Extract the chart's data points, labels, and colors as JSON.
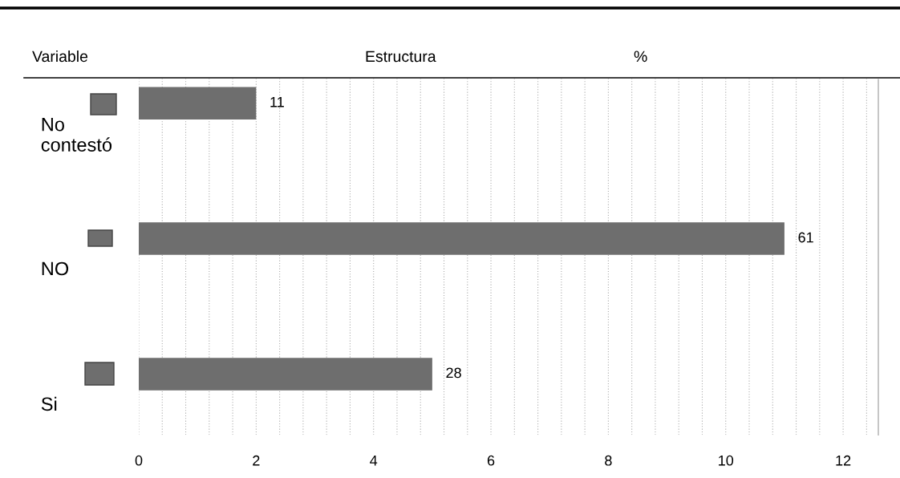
{
  "chart_data": {
    "type": "bar",
    "orientation": "horizontal",
    "categories": [
      "No\ncontestó",
      "NO",
      "Si"
    ],
    "values": [
      2,
      11,
      5
    ],
    "color": "#6e6e6e",
    "xlim": [
      0,
      12.6
    ],
    "xticks": [
      0,
      2,
      4,
      6,
      8,
      10,
      12
    ],
    "grid": "x",
    "annotations": [
      "Variable",
      "Estructura",
      "%",
      "11",
      "61",
      "28"
    ]
  }
}
